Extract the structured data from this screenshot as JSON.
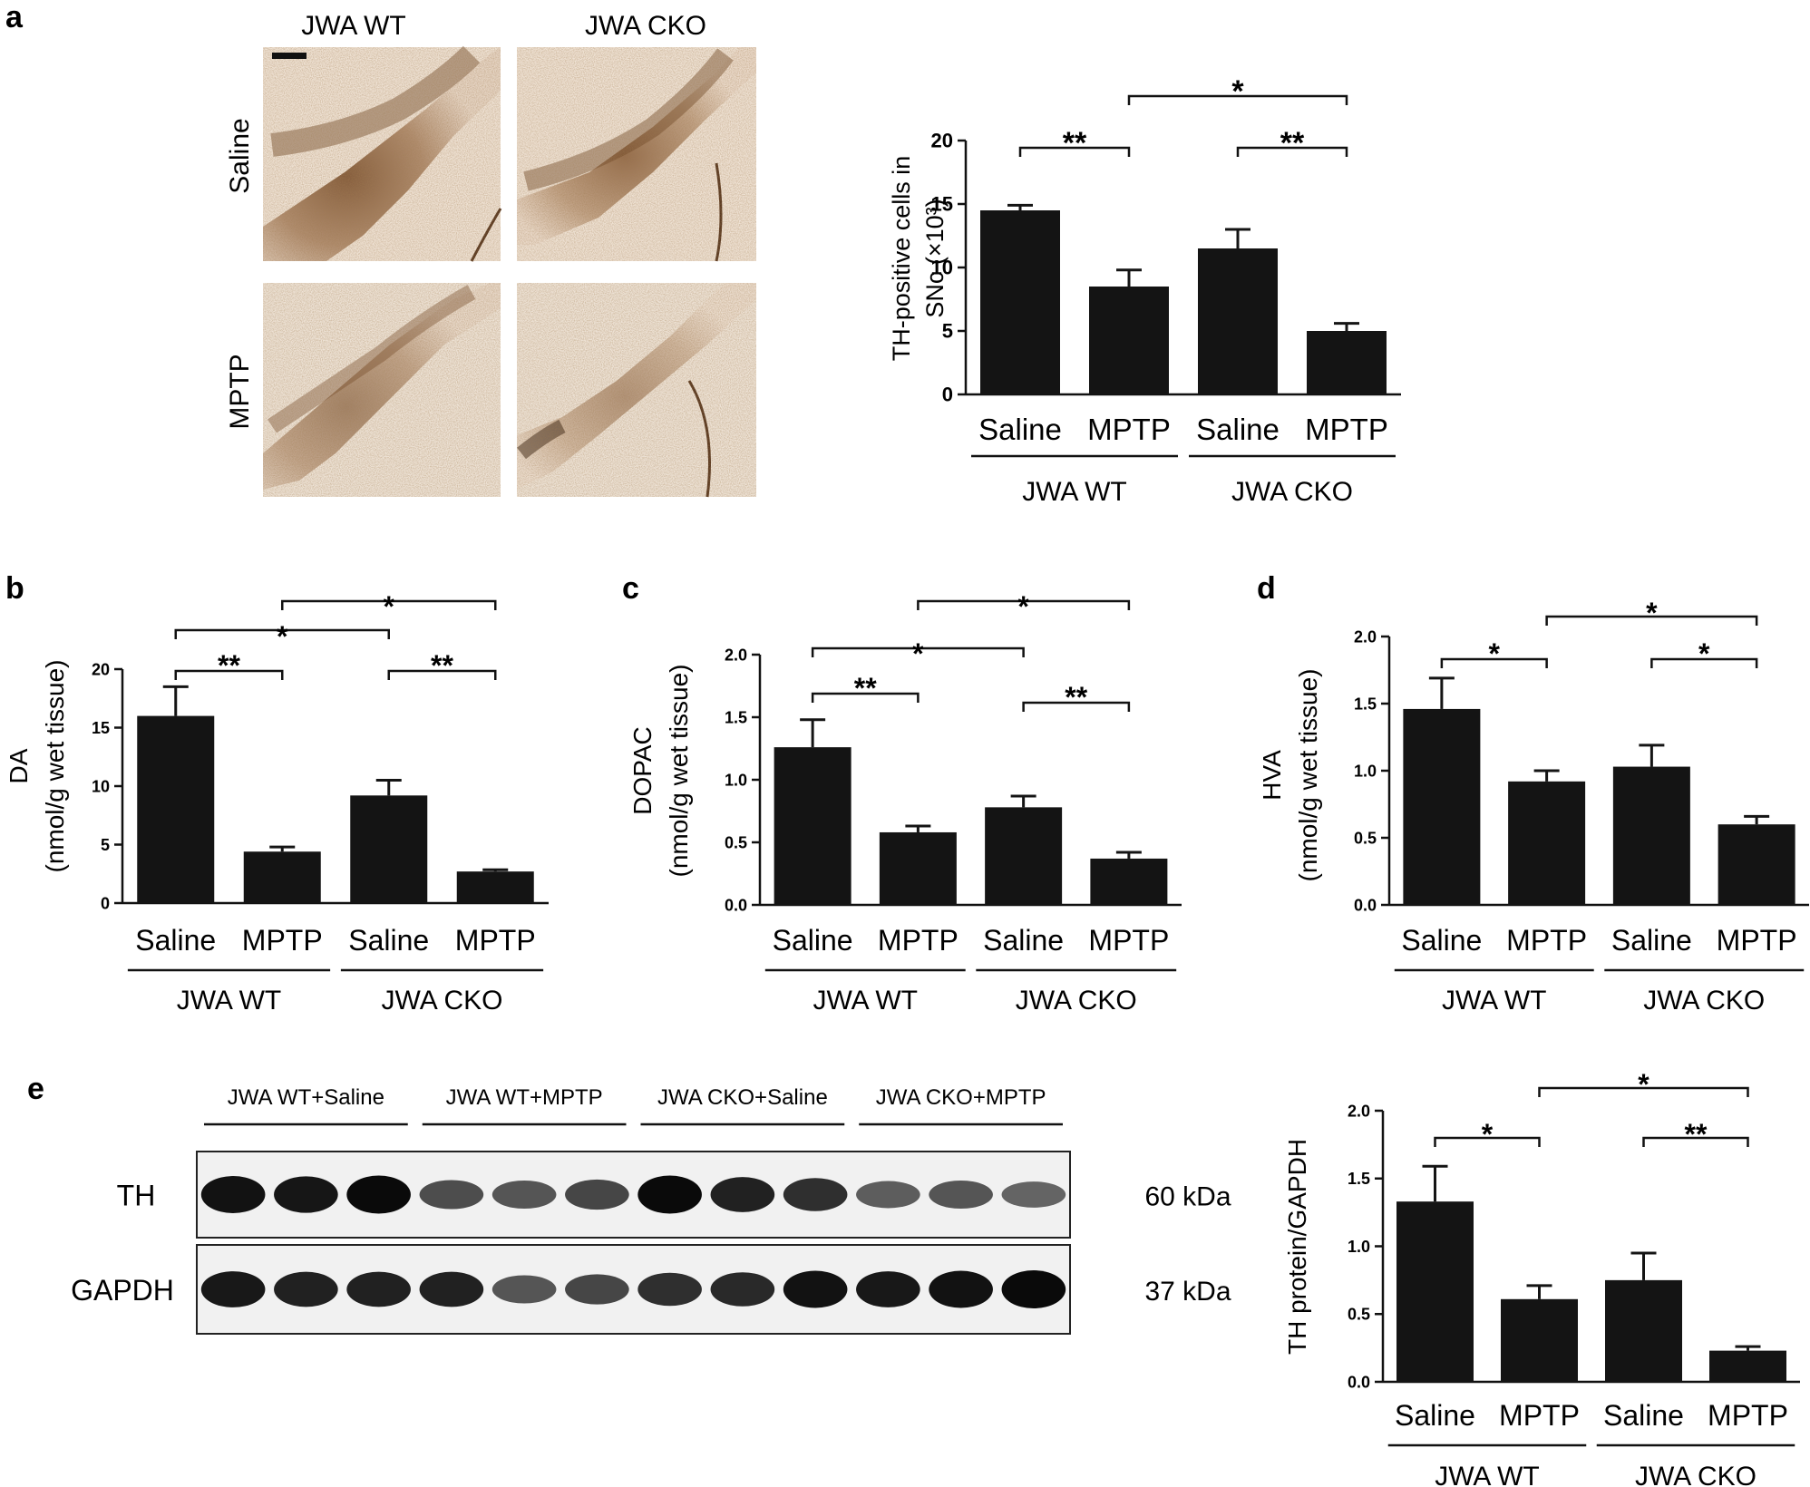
{
  "panel_letters": {
    "a": "a",
    "b": "b",
    "c": "c",
    "d": "d",
    "e": "e"
  },
  "micrographs": {
    "columns": [
      "JWA  WT",
      "JWA  CKO"
    ],
    "rows": [
      "Saline",
      "MPTP"
    ]
  },
  "chart_data": [
    {
      "id": "a",
      "type": "bar",
      "categories": [
        "Saline",
        "MPTP",
        "Saline",
        "MPTP"
      ],
      "groups": [
        "JWA WT",
        "JWA CKO"
      ],
      "values": [
        14.5,
        8.5,
        11.5,
        5.0
      ],
      "errors": [
        0.4,
        1.3,
        1.5,
        0.6
      ],
      "ylabel_lines": [
        "TH-positive cells in",
        "SNc (×10³)"
      ],
      "yticks": [
        "0",
        "5",
        "10",
        "15",
        "20"
      ],
      "ylim": [
        0,
        20
      ],
      "significance": [
        {
          "from": 0,
          "to": 1,
          "label": "**"
        },
        {
          "from": 2,
          "to": 3,
          "label": "**"
        },
        {
          "from": 1,
          "to": 3,
          "label": "*"
        }
      ]
    },
    {
      "id": "b",
      "type": "bar",
      "categories": [
        "Saline",
        "MPTP",
        "Saline",
        "MPTP"
      ],
      "groups": [
        "JWA WT",
        "JWA CKO"
      ],
      "values": [
        16.0,
        4.4,
        9.2,
        2.7
      ],
      "errors": [
        2.5,
        0.4,
        1.3,
        0.15
      ],
      "ylabel_lines": [
        "DA",
        "(nmol/g wet tissue)"
      ],
      "yticks": [
        "0",
        "5",
        "10",
        "15",
        "20"
      ],
      "ylim": [
        0,
        20
      ],
      "significance": [
        {
          "from": 0,
          "to": 1,
          "label": "**"
        },
        {
          "from": 2,
          "to": 3,
          "label": "**"
        },
        {
          "from": 0,
          "to": 2,
          "label": "*"
        },
        {
          "from": 1,
          "to": 3,
          "label": "*"
        }
      ]
    },
    {
      "id": "c",
      "type": "bar",
      "categories": [
        "Saline",
        "MPTP",
        "Saline",
        "MPTP"
      ],
      "groups": [
        "JWA WT",
        "JWA CKO"
      ],
      "values": [
        1.26,
        0.58,
        0.78,
        0.37
      ],
      "errors": [
        0.22,
        0.05,
        0.09,
        0.05
      ],
      "ylabel_lines": [
        "DOPAC",
        "(nmol/g wet tissue)"
      ],
      "yticks": [
        "0.0",
        "0.5",
        "1.0",
        "1.5",
        "2.0"
      ],
      "ylim": [
        0,
        2
      ],
      "significance": [
        {
          "from": 0,
          "to": 1,
          "label": "**"
        },
        {
          "from": 2,
          "to": 3,
          "label": "**"
        },
        {
          "from": 0,
          "to": 2,
          "label": "*"
        },
        {
          "from": 1,
          "to": 3,
          "label": "*"
        }
      ]
    },
    {
      "id": "d",
      "type": "bar",
      "categories": [
        "Saline",
        "MPTP",
        "Saline",
        "MPTP"
      ],
      "groups": [
        "JWA WT",
        "JWA CKO"
      ],
      "values": [
        1.46,
        0.92,
        1.03,
        0.6
      ],
      "errors": [
        0.23,
        0.08,
        0.16,
        0.06
      ],
      "ylabel_lines": [
        "HVA",
        "(nmol/g wet tissue)"
      ],
      "yticks": [
        "0.0",
        "0.5",
        "1.0",
        "1.5",
        "2.0"
      ],
      "ylim": [
        0,
        2
      ],
      "significance": [
        {
          "from": 0,
          "to": 1,
          "label": "*"
        },
        {
          "from": 2,
          "to": 3,
          "label": "*"
        },
        {
          "from": 1,
          "to": 3,
          "label": "*"
        }
      ]
    },
    {
      "id": "e",
      "type": "bar",
      "categories": [
        "Saline",
        "MPTP",
        "Saline",
        "MPTP"
      ],
      "groups": [
        "JWA WT",
        "JWA CKO"
      ],
      "values": [
        1.33,
        0.61,
        0.75,
        0.23
      ],
      "errors": [
        0.26,
        0.1,
        0.2,
        0.03
      ],
      "ylabel_lines": [
        "TH protein/GAPDH"
      ],
      "yticks": [
        "0.0",
        "0.5",
        "1.0",
        "1.5",
        "2.0"
      ],
      "ylim": [
        0,
        2
      ],
      "significance": [
        {
          "from": 0,
          "to": 1,
          "label": "*"
        },
        {
          "from": 2,
          "to": 3,
          "label": "**"
        },
        {
          "from": 1,
          "to": 3,
          "label": "*"
        }
      ]
    }
  ],
  "western_blot": {
    "lane_groups": [
      "JWA WT+Saline",
      "JWA WT+MPTP",
      "JWA CKO+Saline",
      "JWA CKO+MPTP"
    ],
    "rows": [
      {
        "label": "TH",
        "size": "60 kDa",
        "intensities": [
          0.95,
          0.92,
          1.0,
          0.55,
          0.5,
          0.6,
          1.0,
          0.85,
          0.75,
          0.45,
          0.5,
          0.4
        ]
      },
      {
        "label": "GAPDH",
        "size": "37 kDa",
        "intensities": [
          0.9,
          0.85,
          0.85,
          0.85,
          0.5,
          0.6,
          0.75,
          0.8,
          0.95,
          0.9,
          0.95,
          1.0
        ]
      }
    ]
  }
}
